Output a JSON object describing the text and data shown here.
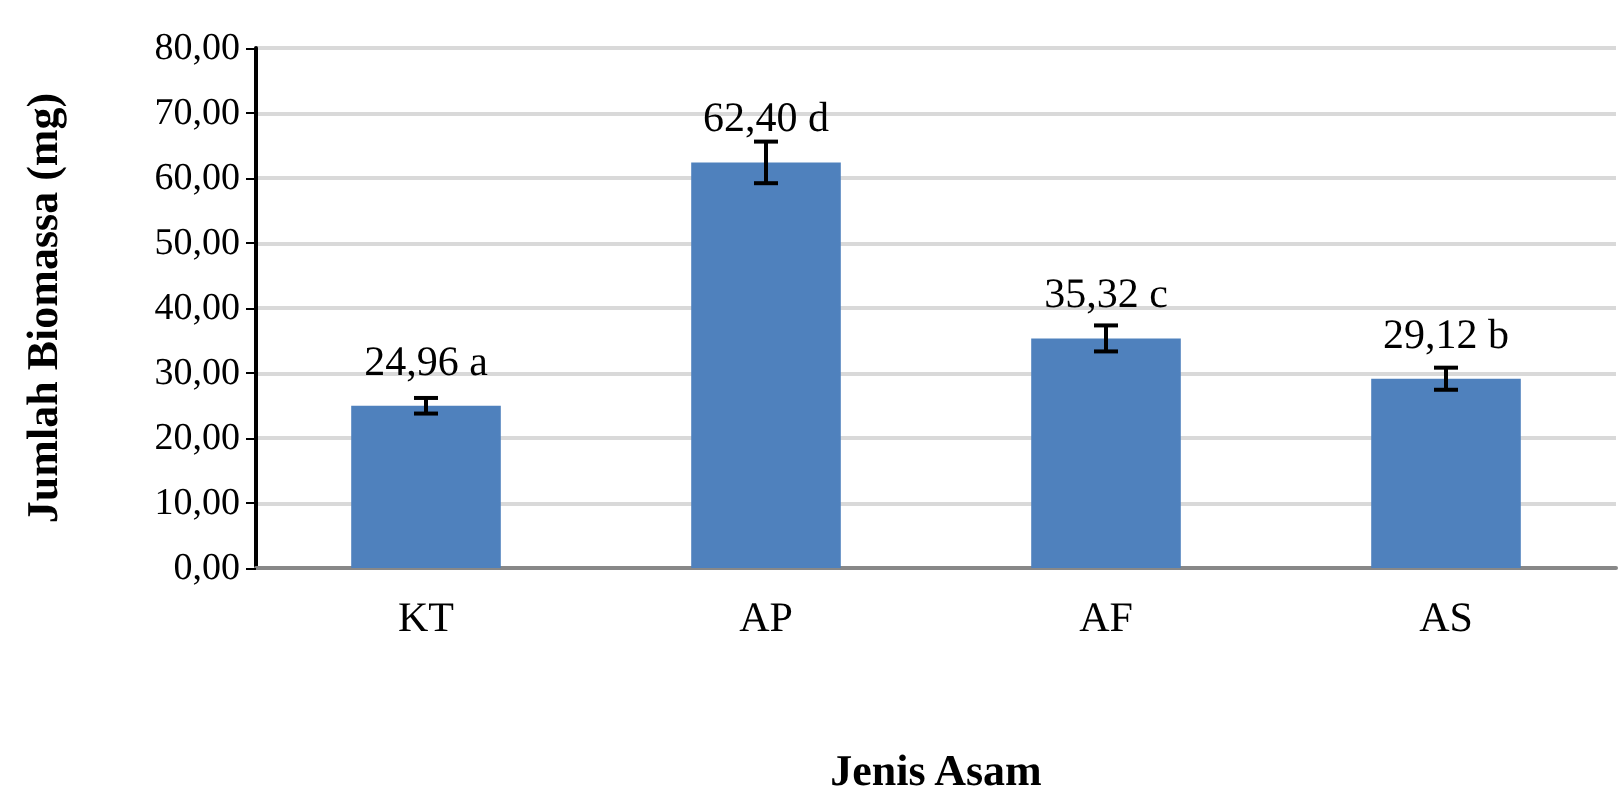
{
  "chart_data": {
    "type": "bar",
    "xlabel": "Jenis Asam",
    "ylabel": "Jumlah Biomassa (mg)",
    "categories": [
      "KT",
      "AP",
      "AF",
      "AS"
    ],
    "values": [
      24.96,
      62.4,
      35.32,
      29.12
    ],
    "errors": [
      1.2,
      3.2,
      2.0,
      1.7
    ],
    "value_labels": [
      "24,96 a",
      "62,40 d",
      "35,32 c",
      "29,12 b"
    ],
    "color": "#4f81bd",
    "ylim": [
      0,
      80
    ],
    "yticks": [
      {
        "value": 0,
        "label": "0,00"
      },
      {
        "value": 10,
        "label": "10,00"
      },
      {
        "value": 20,
        "label": "20,00"
      },
      {
        "value": 30,
        "label": "30,00"
      },
      {
        "value": 40,
        "label": "40,00"
      },
      {
        "value": 50,
        "label": "50,00"
      },
      {
        "value": 60,
        "label": "60,00"
      },
      {
        "value": 70,
        "label": "70,00"
      },
      {
        "value": 80,
        "label": "80,00"
      }
    ],
    "grid": "y"
  }
}
